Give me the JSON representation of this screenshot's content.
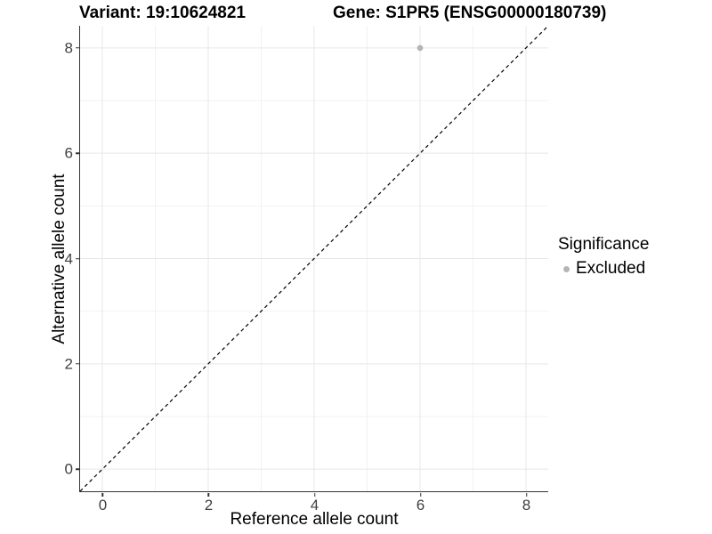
{
  "header": {
    "variant_title": "Variant: 19:10624821",
    "gene_title": "Gene: S1PR5 (ENSG00000180739)"
  },
  "legend": {
    "title": "Significance",
    "items": [
      {
        "label": "Excluded",
        "color": "#b5b5b5"
      }
    ]
  },
  "colors": {
    "background": "#ffffff",
    "grid_major": "#e7e7e7",
    "grid_minor": "#f2f2f2",
    "axis_line": "#333333",
    "tick_text": "#404040",
    "identity_line": "#000000",
    "point": "#b5b5b5"
  },
  "chart_data": {
    "type": "scatter",
    "title": "Variant: 19:10624821    Gene: S1PR5 (ENSG00000180739)",
    "xlabel": "Reference allele count",
    "ylabel": "Alternative allele count",
    "xlim": [
      -0.42,
      8.42
    ],
    "ylim": [
      -0.42,
      8.42
    ],
    "x_ticks": [
      0,
      2,
      4,
      6,
      8
    ],
    "y_ticks": [
      0,
      2,
      4,
      6,
      8
    ],
    "grid": "major and minor gridlines, light grey on white",
    "legend_position": "right",
    "legend_title": "Significance",
    "series": [
      {
        "name": "Excluded",
        "marker": "circle",
        "color": "#b5b5b5",
        "points": [
          [
            6,
            8
          ]
        ]
      }
    ],
    "reference_line": {
      "type": "identity y=x",
      "style": "dashed",
      "color": "#000000"
    }
  }
}
